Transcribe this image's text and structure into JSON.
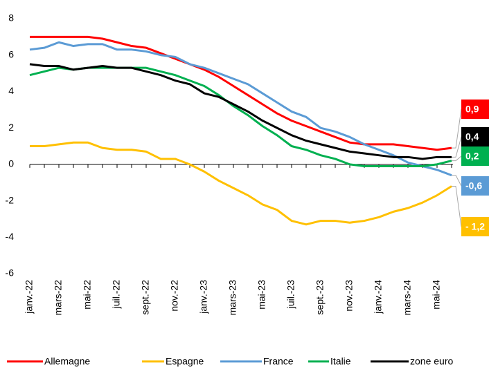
{
  "chart_data": {
    "type": "line",
    "categories": [
      "janv.-22",
      null,
      "mars-22",
      null,
      "mai-22",
      null,
      "juil.-22",
      null,
      "sept.-22",
      null,
      "nov.-22",
      null,
      "janv.-23",
      null,
      "mars-23",
      null,
      "mai-23",
      null,
      "juil.-23",
      null,
      "sept.-23",
      null,
      "nov.-23",
      null,
      "janv.-24",
      null,
      "mars-24",
      null,
      "mai-24",
      null
    ],
    "ylim": [
      -6,
      8
    ],
    "yticks": [
      -6,
      -4,
      -2,
      0,
      2,
      4,
      6,
      8
    ],
    "grid": false,
    "series": [
      {
        "name": "Allemagne",
        "color": "#ff0000",
        "end_label": "0,9",
        "values": [
          7.0,
          7.0,
          7.0,
          7.0,
          7.0,
          6.9,
          6.7,
          6.5,
          6.4,
          6.1,
          5.8,
          5.5,
          5.2,
          4.8,
          4.3,
          3.8,
          3.3,
          2.8,
          2.4,
          2.1,
          1.8,
          1.5,
          1.2,
          1.1,
          1.1,
          1.1,
          1.0,
          0.9,
          0.8,
          0.9
        ]
      },
      {
        "name": "Espagne",
        "color": "#ffc000",
        "end_label": "- 1,2",
        "values": [
          1.0,
          1.0,
          1.1,
          1.2,
          1.2,
          0.9,
          0.8,
          0.8,
          0.7,
          0.3,
          0.3,
          0.0,
          -0.4,
          -0.9,
          -1.3,
          -1.7,
          -2.2,
          -2.5,
          -3.1,
          -3.3,
          -3.1,
          -3.1,
          -3.2,
          -3.1,
          -2.9,
          -2.6,
          -2.4,
          -2.1,
          -1.7,
          -1.2
        ]
      },
      {
        "name": "France",
        "color": "#5b9bd5",
        "end_label": "-0,6",
        "values": [
          6.3,
          6.4,
          6.7,
          6.5,
          6.6,
          6.6,
          6.3,
          6.3,
          6.2,
          6.0,
          5.9,
          5.5,
          5.3,
          5.0,
          4.7,
          4.4,
          3.9,
          3.4,
          2.9,
          2.6,
          2.0,
          1.8,
          1.5,
          1.1,
          0.8,
          0.5,
          0.1,
          -0.1,
          -0.3,
          -0.6
        ]
      },
      {
        "name": "Italie",
        "color": "#00b050",
        "end_label": "0,2",
        "values": [
          4.9,
          5.1,
          5.3,
          5.2,
          5.3,
          5.3,
          5.3,
          5.3,
          5.3,
          5.1,
          4.9,
          4.6,
          4.3,
          3.8,
          3.2,
          2.7,
          2.1,
          1.6,
          1.0,
          0.8,
          0.5,
          0.3,
          0.0,
          -0.1,
          -0.1,
          -0.1,
          -0.1,
          -0.1,
          0.0,
          0.2
        ]
      },
      {
        "name": "zone euro",
        "color": "#000000",
        "end_label": "0,4",
        "values": [
          5.5,
          5.4,
          5.4,
          5.2,
          5.3,
          5.4,
          5.3,
          5.3,
          5.1,
          4.9,
          4.6,
          4.4,
          3.9,
          3.7,
          3.3,
          2.9,
          2.4,
          2.0,
          1.6,
          1.3,
          1.1,
          0.9,
          0.7,
          0.6,
          0.5,
          0.4,
          0.4,
          0.3,
          0.4,
          0.4
        ]
      }
    ]
  }
}
